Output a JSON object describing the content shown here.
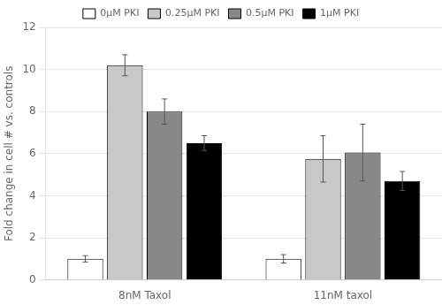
{
  "chart_data": {
    "type": "bar",
    "categories": [
      "8nM Taxol",
      "11nM taxol"
    ],
    "series": [
      {
        "name": "0μM PKI",
        "color": "#ffffff",
        "values": [
          1.0,
          1.0
        ],
        "errors": [
          0.15,
          0.2
        ]
      },
      {
        "name": "0.25μM PKI",
        "color": "#c8c8c8",
        "values": [
          10.2,
          5.75
        ],
        "errors": [
          0.5,
          1.1
        ]
      },
      {
        "name": "0.5μM PKI",
        "color": "#888888",
        "values": [
          8.0,
          6.05
        ],
        "errors": [
          0.6,
          1.35
        ]
      },
      {
        "name": "1μM PKI",
        "color": "#000000",
        "values": [
          6.5,
          4.7
        ],
        "errors": [
          0.35,
          0.45
        ]
      }
    ],
    "ylabel": "Fold change in cell # vs. controls",
    "ylim": [
      0,
      12
    ],
    "yticks": [
      0,
      2,
      4,
      6,
      8,
      10,
      12
    ],
    "grid": true,
    "legend": "top"
  }
}
